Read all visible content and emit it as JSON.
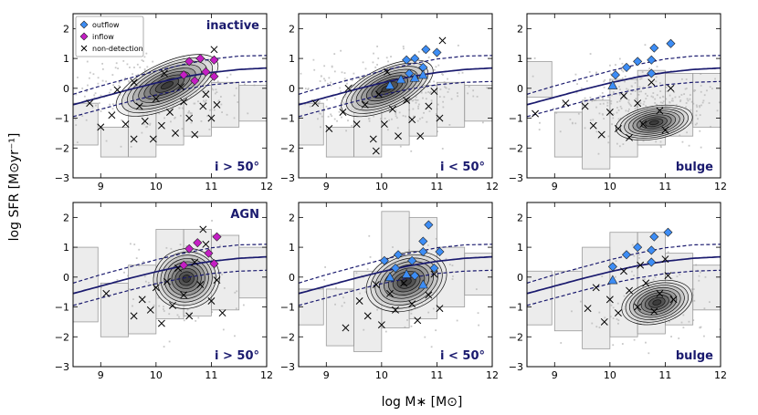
{
  "chart_data": {
    "type": "scatter",
    "xlabel": "log M∗ [M⊙]",
    "ylabel": "log SFR [M⊙yr⁻¹]",
    "xlim": [
      8.5,
      12
    ],
    "ylim": [
      -3,
      2.5
    ],
    "xticks": [
      9,
      10,
      11,
      12
    ],
    "yticks": [
      -3,
      -2,
      -1,
      0,
      1,
      2
    ],
    "colors": {
      "outflow": "#3d8df5",
      "inflow": "#c41ec4",
      "curve": "#1a1a6e",
      "label": "#1a1a6e",
      "scatter": "#c8c8c8"
    },
    "legend": {
      "position": "top-left",
      "entries": [
        {
          "marker": "diamond",
          "label": "outflow"
        },
        {
          "marker": "diamond",
          "label": "inflow"
        },
        {
          "marker": "x",
          "label": "non-detection"
        }
      ]
    },
    "main_sequence": {
      "mean": [
        -0.55,
        -0.3,
        -0.05,
        0.18,
        0.38,
        0.53,
        0.63,
        0.68
      ],
      "upper": [
        -0.2,
        0.08,
        0.33,
        0.58,
        0.8,
        0.98,
        1.08,
        1.1
      ],
      "lower": [
        -0.95,
        -0.7,
        -0.45,
        -0.22,
        -0.03,
        0.12,
        0.2,
        0.23
      ],
      "x": [
        8.5,
        9.0,
        9.5,
        10.0,
        10.5,
        11.0,
        11.5,
        12.0
      ]
    },
    "panels": [
      {
        "top_label": "inactive",
        "bottom_label": "i > 50°",
        "show_legend": true,
        "density": {
          "cx": 10.2,
          "cy": 0.1,
          "rx": 1.0,
          "ry": 0.75,
          "rot": 25
        },
        "scatter": {
          "cx": 10.0,
          "cy": -0.1,
          "sx": 0.75,
          "sy": 0.6,
          "n": 320
        },
        "boxes": [
          [
            8.7,
            -1.9,
            1.4
          ],
          [
            9.25,
            -2.3,
            1.0
          ],
          [
            9.75,
            -2.3,
            1.6
          ],
          [
            10.25,
            -1.9,
            1.8
          ],
          [
            10.75,
            -1.6,
            1.7
          ],
          [
            11.25,
            -1.3,
            1.5
          ],
          [
            11.75,
            -1.1,
            1.2
          ]
        ],
        "outflow": [],
        "outflow_tri": [],
        "inflow": [
          [
            10.5,
            0.45
          ],
          [
            10.6,
            0.9
          ],
          [
            10.8,
            1.0
          ],
          [
            10.9,
            0.55
          ],
          [
            11.05,
            0.95
          ],
          [
            11.05,
            0.4
          ],
          [
            10.7,
            0.25
          ]
        ],
        "nondet": [
          [
            8.8,
            -0.5
          ],
          [
            9.0,
            -1.3
          ],
          [
            9.2,
            -0.9
          ],
          [
            9.3,
            -0.05
          ],
          [
            9.45,
            -1.2
          ],
          [
            9.6,
            0.2
          ],
          [
            9.6,
            -1.7
          ],
          [
            9.7,
            -0.6
          ],
          [
            9.8,
            -1.1
          ],
          [
            9.95,
            -1.7
          ],
          [
            10.0,
            -0.35
          ],
          [
            10.1,
            -1.25
          ],
          [
            10.15,
            0.5
          ],
          [
            10.25,
            -0.8
          ],
          [
            10.35,
            -1.5
          ],
          [
            10.45,
            0.05
          ],
          [
            10.5,
            -0.45
          ],
          [
            10.6,
            -1.0
          ],
          [
            10.7,
            -1.55
          ],
          [
            10.85,
            -0.6
          ],
          [
            10.9,
            -0.2
          ],
          [
            11.0,
            -1.0
          ],
          [
            11.05,
            1.3
          ],
          [
            11.1,
            -0.55
          ]
        ]
      },
      {
        "top_label": "",
        "bottom_label": "i < 50°",
        "show_legend": false,
        "density": {
          "cx": 10.1,
          "cy": 0.0,
          "rx": 0.9,
          "ry": 0.7,
          "rot": 25
        },
        "scatter": {
          "cx": 10.0,
          "cy": -0.1,
          "sx": 0.75,
          "sy": 0.6,
          "n": 320
        },
        "boxes": [
          [
            8.7,
            -1.9,
            1.4
          ],
          [
            9.25,
            -2.3,
            1.0
          ],
          [
            9.75,
            -2.3,
            1.6
          ],
          [
            10.25,
            -1.9,
            1.8
          ],
          [
            10.75,
            -1.6,
            1.7
          ],
          [
            11.25,
            -1.3,
            1.5
          ],
          [
            11.75,
            -1.1,
            1.2
          ]
        ],
        "outflow": [
          [
            10.45,
            0.95
          ],
          [
            10.6,
            1.0
          ],
          [
            10.8,
            1.3
          ],
          [
            11.0,
            1.2
          ],
          [
            10.75,
            0.7
          ],
          [
            10.5,
            0.5
          ]
        ],
        "outflow_tri": [
          [
            10.15,
            0.1
          ],
          [
            10.35,
            0.3
          ],
          [
            10.6,
            0.35
          ],
          [
            10.75,
            0.45
          ]
        ],
        "inflow": [],
        "nondet": [
          [
            8.8,
            -0.5
          ],
          [
            9.05,
            -1.35
          ],
          [
            9.3,
            -0.8
          ],
          [
            9.4,
            0.0
          ],
          [
            9.55,
            -1.2
          ],
          [
            9.7,
            -0.55
          ],
          [
            9.85,
            -1.7
          ],
          [
            9.95,
            -0.2
          ],
          [
            10.05,
            -1.2
          ],
          [
            10.2,
            -0.7
          ],
          [
            10.3,
            -1.6
          ],
          [
            10.45,
            -0.4
          ],
          [
            10.55,
            -1.05
          ],
          [
            10.7,
            -1.6
          ],
          [
            10.85,
            -0.6
          ],
          [
            10.95,
            -0.1
          ],
          [
            11.05,
            -1.0
          ],
          [
            11.1,
            1.6
          ],
          [
            10.1,
            0.55
          ],
          [
            9.9,
            -2.1
          ]
        ]
      },
      {
        "top_label": "",
        "bottom_label": "bulge",
        "show_legend": false,
        "density": {
          "cx": 10.8,
          "cy": -1.15,
          "rx": 0.7,
          "ry": 0.55,
          "rot": 10
        },
        "scatter": {
          "cx": 10.6,
          "cy": -0.6,
          "sx": 0.7,
          "sy": 0.7,
          "n": 320
        },
        "boxes": [
          [
            8.7,
            -0.3,
            1.2
          ],
          [
            9.25,
            -2.3,
            1.5
          ],
          [
            9.75,
            -2.7,
            2.3
          ],
          [
            10.25,
            -2.3,
            2.6
          ],
          [
            10.75,
            -1.9,
            2.5
          ],
          [
            11.25,
            -1.6,
            2.1
          ],
          [
            11.75,
            -1.3,
            1.8
          ]
        ],
        "outflow": [
          [
            10.1,
            0.45
          ],
          [
            10.3,
            0.7
          ],
          [
            10.5,
            0.9
          ],
          [
            10.75,
            0.95
          ],
          [
            10.8,
            1.35
          ],
          [
            11.1,
            1.5
          ],
          [
            10.75,
            0.5
          ]
        ],
        "outflow_tri": [
          [
            10.05,
            0.1
          ]
        ],
        "inflow": [],
        "nondet": [
          [
            8.65,
            -0.85
          ],
          [
            9.2,
            -0.5
          ],
          [
            9.55,
            -0.6
          ],
          [
            9.7,
            -1.25
          ],
          [
            9.85,
            -1.55
          ],
          [
            10.0,
            -0.8
          ],
          [
            10.15,
            -1.35
          ],
          [
            10.25,
            -0.25
          ],
          [
            10.35,
            -1.65
          ],
          [
            10.5,
            -0.5
          ],
          [
            10.6,
            -1.2
          ],
          [
            10.75,
            0.2
          ],
          [
            10.9,
            -0.75
          ],
          [
            11.0,
            -1.4
          ],
          [
            11.1,
            0.0
          ]
        ]
      },
      {
        "top_label": "AGN",
        "bottom_label": "i > 50°",
        "show_legend": false,
        "density": {
          "cx": 10.55,
          "cy": -0.05,
          "rx": 0.6,
          "ry": 1.0,
          "rot": 15
        },
        "scatter": {
          "cx": 10.5,
          "cy": -0.3,
          "sx": 0.55,
          "sy": 0.7,
          "n": 110
        },
        "boxes": [
          [
            8.7,
            -1.5,
            2.5
          ],
          [
            9.25,
            -2.0,
            1.8
          ],
          [
            9.75,
            -1.9,
            2.3
          ],
          [
            10.25,
            -1.4,
            3.0
          ],
          [
            10.75,
            -1.3,
            2.9
          ],
          [
            11.25,
            -1.1,
            2.5
          ],
          [
            11.75,
            -0.7,
            1.7
          ]
        ],
        "outflow": [],
        "outflow_tri": [],
        "inflow": [
          [
            10.5,
            0.4
          ],
          [
            10.6,
            0.95
          ],
          [
            10.75,
            1.15
          ],
          [
            10.95,
            0.8
          ],
          [
            11.1,
            1.35
          ],
          [
            11.05,
            0.45
          ]
        ],
        "nondet": [
          [
            9.1,
            -0.55
          ],
          [
            9.6,
            -1.3
          ],
          [
            9.75,
            -0.75
          ],
          [
            9.9,
            -1.1
          ],
          [
            10.0,
            -0.35
          ],
          [
            10.1,
            -1.55
          ],
          [
            10.2,
            -0.15
          ],
          [
            10.3,
            -0.95
          ],
          [
            10.4,
            0.3
          ],
          [
            10.5,
            -0.6
          ],
          [
            10.6,
            -1.3
          ],
          [
            10.7,
            0.5
          ],
          [
            10.8,
            -0.25
          ],
          [
            10.9,
            1.1
          ],
          [
            10.85,
            1.6
          ],
          [
            11.0,
            -0.8
          ],
          [
            11.1,
            -0.1
          ],
          [
            11.2,
            -1.2
          ]
        ]
      },
      {
        "top_label": "",
        "bottom_label": "i < 50°",
        "show_legend": false,
        "density": {
          "cx": 10.45,
          "cy": -0.15,
          "rx": 0.75,
          "ry": 0.95,
          "rot": 20
        },
        "scatter": {
          "cx": 10.4,
          "cy": -0.3,
          "sx": 0.65,
          "sy": 0.7,
          "n": 110
        },
        "boxes": [
          [
            8.7,
            -1.6,
            1.2
          ],
          [
            9.25,
            -2.3,
            1.9
          ],
          [
            9.75,
            -2.5,
            2.7
          ],
          [
            10.25,
            -1.7,
            3.9
          ],
          [
            10.75,
            -1.4,
            3.4
          ],
          [
            11.25,
            -1.0,
            2.0
          ],
          [
            11.75,
            -0.6,
            1.4
          ]
        ],
        "outflow": [
          [
            10.05,
            0.55
          ],
          [
            10.3,
            0.75
          ],
          [
            10.55,
            0.55
          ],
          [
            10.75,
            0.85
          ],
          [
            10.75,
            1.2
          ],
          [
            10.85,
            1.75
          ],
          [
            11.05,
            0.85
          ],
          [
            10.95,
            0.3
          ],
          [
            10.25,
            0.3
          ],
          [
            10.6,
            0.05
          ]
        ],
        "outflow_tri": [
          [
            10.15,
            0.0
          ],
          [
            10.45,
            0.1
          ],
          [
            10.75,
            -0.25
          ]
        ],
        "inflow": [],
        "nondet": [
          [
            9.35,
            -1.7
          ],
          [
            9.6,
            -0.8
          ],
          [
            9.75,
            -1.3
          ],
          [
            9.9,
            -0.25
          ],
          [
            10.0,
            -1.6
          ],
          [
            10.15,
            -0.55
          ],
          [
            10.25,
            -1.1
          ],
          [
            10.4,
            -0.2
          ],
          [
            10.55,
            -0.9
          ],
          [
            10.65,
            -1.45
          ],
          [
            10.85,
            -0.6
          ],
          [
            10.95,
            0.1
          ],
          [
            11.05,
            -1.05
          ]
        ]
      },
      {
        "top_label": "",
        "bottom_label": "bulge",
        "show_legend": false,
        "density": {
          "cx": 10.85,
          "cy": -0.85,
          "rx": 0.65,
          "ry": 0.7,
          "rot": 15
        },
        "scatter": {
          "cx": 10.7,
          "cy": -0.7,
          "sx": 0.6,
          "sy": 0.75,
          "n": 110
        },
        "boxes": [
          [
            8.7,
            -1.6,
            1.8
          ],
          [
            9.25,
            -1.8,
            2.0
          ],
          [
            9.75,
            -2.4,
            3.4
          ],
          [
            10.25,
            -2.0,
            3.5
          ],
          [
            10.75,
            -1.9,
            3.4
          ],
          [
            11.25,
            -1.6,
            2.4
          ],
          [
            11.75,
            -1.1,
            1.5
          ]
        ],
        "outflow": [
          [
            10.05,
            0.35
          ],
          [
            10.3,
            0.75
          ],
          [
            10.5,
            1.0
          ],
          [
            10.75,
            0.9
          ],
          [
            10.8,
            1.35
          ],
          [
            11.05,
            1.5
          ],
          [
            10.75,
            0.5
          ]
        ],
        "outflow_tri": [
          [
            10.05,
            -0.1
          ]
        ],
        "inflow": [],
        "nondet": [
          [
            9.6,
            -1.05
          ],
          [
            9.75,
            -0.35
          ],
          [
            9.9,
            -1.5
          ],
          [
            10.0,
            -0.75
          ],
          [
            10.15,
            -1.2
          ],
          [
            10.25,
            0.2
          ],
          [
            10.35,
            -0.45
          ],
          [
            10.5,
            -1.0
          ],
          [
            10.55,
            0.4
          ],
          [
            10.65,
            -0.2
          ],
          [
            10.8,
            -1.15
          ],
          [
            10.9,
            -0.55
          ],
          [
            11.0,
            0.6
          ],
          [
            11.05,
            0.05
          ],
          [
            11.15,
            -0.75
          ]
        ]
      }
    ]
  }
}
